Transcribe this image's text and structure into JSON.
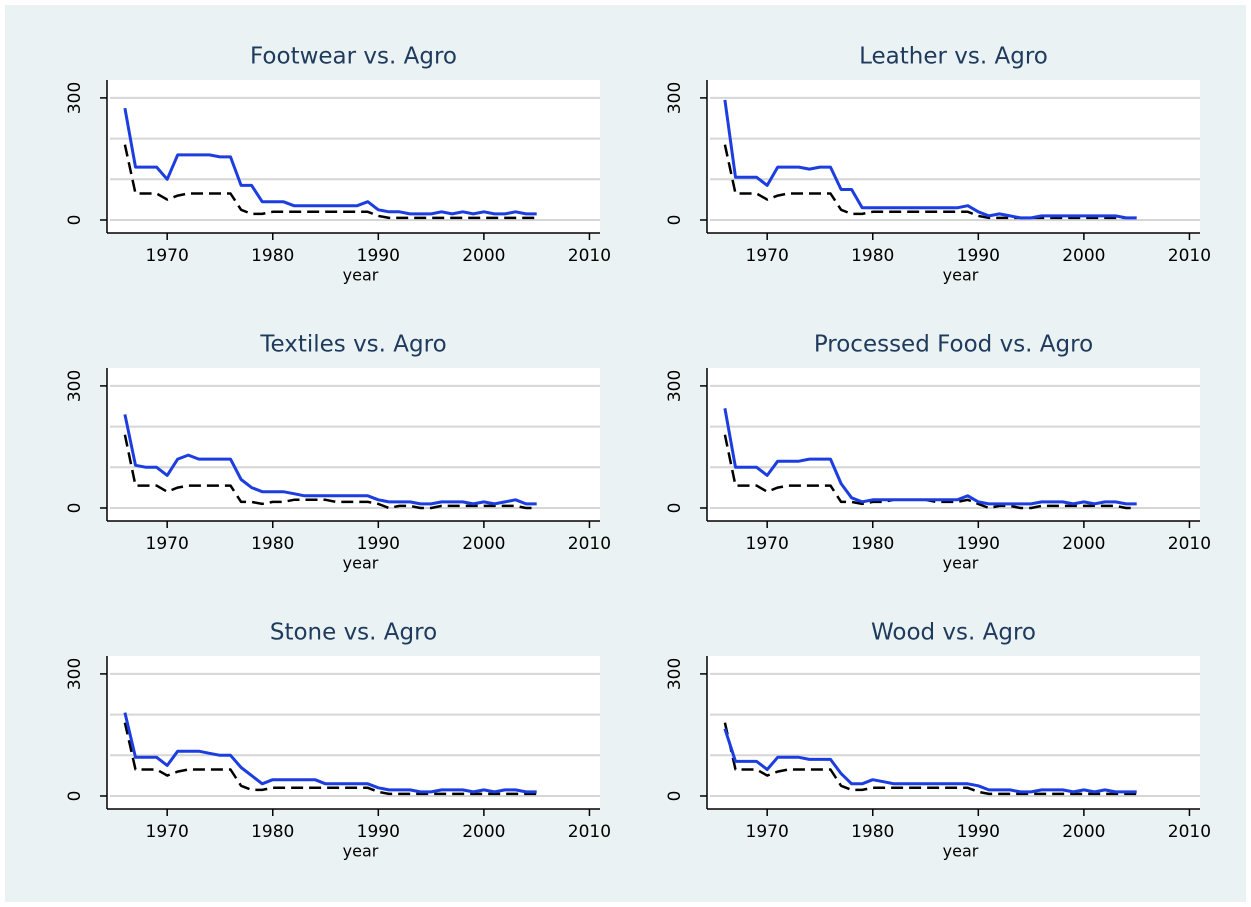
{
  "chart_data": [
    {
      "type": "line",
      "title": "Footwear vs. Agro",
      "xlabel": "year",
      "x": [
        1966,
        1967,
        1968,
        1969,
        1970,
        1971,
        1972,
        1973,
        1974,
        1975,
        1976,
        1977,
        1978,
        1979,
        1980,
        1981,
        1982,
        1983,
        1984,
        1985,
        1986,
        1987,
        1988,
        1989,
        1990,
        1991,
        1992,
        1993,
        1994,
        1995,
        1996,
        1997,
        1998,
        1999,
        2000,
        2001,
        2002,
        2003,
        2004,
        2005
      ],
      "xlim": [
        1964.3,
        2011
      ],
      "xticks": [
        1970,
        1980,
        1990,
        2000,
        2010
      ],
      "ylim": [
        -32,
        344
      ],
      "yticks": [
        0,
        300
      ],
      "ygrid": [
        0,
        100,
        200,
        300
      ],
      "series": [
        {
          "color": "#1c3ee0",
          "dash": false,
          "values": [
            275,
            130,
            130,
            130,
            100,
            160,
            160,
            160,
            160,
            155,
            155,
            85,
            85,
            45,
            45,
            45,
            35,
            35,
            35,
            35,
            35,
            35,
            35,
            45,
            25,
            20,
            20,
            15,
            15,
            15,
            20,
            15,
            20,
            15,
            20,
            15,
            15,
            20,
            15,
            15
          ]
        },
        {
          "color": "#000000",
          "dash": true,
          "values": [
            185,
            65,
            65,
            65,
            50,
            60,
            65,
            65,
            65,
            65,
            65,
            25,
            15,
            15,
            20,
            20,
            20,
            20,
            20,
            20,
            20,
            20,
            20,
            20,
            10,
            5,
            5,
            5,
            5,
            5,
            5,
            5,
            5,
            5,
            5,
            5,
            5,
            5,
            5,
            5
          ]
        }
      ]
    },
    {
      "type": "line",
      "title": "Leather vs. Agro",
      "xlabel": "year",
      "x": [
        1966,
        1967,
        1968,
        1969,
        1970,
        1971,
        1972,
        1973,
        1974,
        1975,
        1976,
        1977,
        1978,
        1979,
        1980,
        1981,
        1982,
        1983,
        1984,
        1985,
        1986,
        1987,
        1988,
        1989,
        1990,
        1991,
        1992,
        1993,
        1994,
        1995,
        1996,
        1997,
        1998,
        1999,
        2000,
        2001,
        2002,
        2003,
        2004,
        2005
      ],
      "xlim": [
        1964.3,
        2011
      ],
      "xticks": [
        1970,
        1980,
        1990,
        2000,
        2010
      ],
      "ylim": [
        -32,
        344
      ],
      "yticks": [
        0,
        300
      ],
      "ygrid": [
        0,
        100,
        200,
        300
      ],
      "series": [
        {
          "color": "#1c3ee0",
          "dash": false,
          "values": [
            295,
            105,
            105,
            105,
            85,
            130,
            130,
            130,
            125,
            130,
            130,
            75,
            75,
            30,
            30,
            30,
            30,
            30,
            30,
            30,
            30,
            30,
            30,
            35,
            20,
            10,
            15,
            10,
            5,
            5,
            10,
            10,
            10,
            10,
            10,
            10,
            10,
            10,
            5,
            5
          ]
        },
        {
          "color": "#000000",
          "dash": true,
          "values": [
            185,
            65,
            65,
            65,
            50,
            60,
            65,
            65,
            65,
            65,
            65,
            25,
            15,
            15,
            20,
            20,
            20,
            20,
            20,
            20,
            20,
            20,
            20,
            20,
            10,
            5,
            5,
            5,
            5,
            5,
            5,
            5,
            5,
            5,
            5,
            5,
            5,
            5,
            5,
            5
          ]
        }
      ]
    },
    {
      "type": "line",
      "title": "Textiles vs. Agro",
      "xlabel": "year",
      "x": [
        1966,
        1967,
        1968,
        1969,
        1970,
        1971,
        1972,
        1973,
        1974,
        1975,
        1976,
        1977,
        1978,
        1979,
        1980,
        1981,
        1982,
        1983,
        1984,
        1985,
        1986,
        1987,
        1988,
        1989,
        1990,
        1991,
        1992,
        1993,
        1994,
        1995,
        1996,
        1997,
        1998,
        1999,
        2000,
        2001,
        2002,
        2003,
        2004,
        2005
      ],
      "xlim": [
        1964.3,
        2011
      ],
      "xticks": [
        1970,
        1980,
        1990,
        2000,
        2010
      ],
      "ylim": [
        -32,
        344
      ],
      "yticks": [
        0,
        300
      ],
      "ygrid": [
        0,
        100,
        200,
        300
      ],
      "series": [
        {
          "color": "#1c3ee0",
          "dash": false,
          "values": [
            230,
            105,
            100,
            100,
            80,
            120,
            130,
            120,
            120,
            120,
            120,
            70,
            50,
            40,
            40,
            40,
            35,
            30,
            30,
            30,
            30,
            30,
            30,
            30,
            20,
            15,
            15,
            15,
            10,
            10,
            15,
            15,
            15,
            10,
            15,
            10,
            15,
            20,
            10,
            10
          ]
        },
        {
          "color": "#000000",
          "dash": true,
          "values": [
            180,
            55,
            55,
            55,
            40,
            50,
            55,
            55,
            55,
            55,
            55,
            15,
            15,
            10,
            15,
            15,
            20,
            20,
            20,
            20,
            15,
            15,
            15,
            15,
            10,
            0,
            5,
            5,
            0,
            0,
            5,
            5,
            5,
            5,
            5,
            5,
            5,
            5,
            0,
            0
          ]
        }
      ]
    },
    {
      "type": "line",
      "title": "Processed Food vs. Agro",
      "xlabel": "year",
      "x": [
        1966,
        1967,
        1968,
        1969,
        1970,
        1971,
        1972,
        1973,
        1974,
        1975,
        1976,
        1977,
        1978,
        1979,
        1980,
        1981,
        1982,
        1983,
        1984,
        1985,
        1986,
        1987,
        1988,
        1989,
        1990,
        1991,
        1992,
        1993,
        1994,
        1995,
        1996,
        1997,
        1998,
        1999,
        2000,
        2001,
        2002,
        2003,
        2004,
        2005
      ],
      "xlim": [
        1964.3,
        2011
      ],
      "xticks": [
        1970,
        1980,
        1990,
        2000,
        2010
      ],
      "ylim": [
        -32,
        344
      ],
      "yticks": [
        0,
        300
      ],
      "ygrid": [
        0,
        100,
        200,
        300
      ],
      "series": [
        {
          "color": "#1c3ee0",
          "dash": false,
          "values": [
            245,
            100,
            100,
            100,
            80,
            115,
            115,
            115,
            120,
            120,
            120,
            60,
            25,
            15,
            20,
            20,
            20,
            20,
            20,
            20,
            20,
            20,
            20,
            30,
            15,
            10,
            10,
            10,
            10,
            10,
            15,
            15,
            15,
            10,
            15,
            10,
            15,
            15,
            10,
            10
          ]
        },
        {
          "color": "#000000",
          "dash": true,
          "values": [
            180,
            55,
            55,
            55,
            40,
            50,
            55,
            55,
            55,
            55,
            55,
            15,
            15,
            10,
            15,
            15,
            20,
            20,
            20,
            20,
            15,
            15,
            15,
            20,
            10,
            0,
            5,
            5,
            0,
            0,
            5,
            5,
            5,
            5,
            5,
            5,
            5,
            5,
            0,
            0
          ]
        }
      ]
    },
    {
      "type": "line",
      "title": "Stone vs. Agro",
      "xlabel": "year",
      "x": [
        1966,
        1967,
        1968,
        1969,
        1970,
        1971,
        1972,
        1973,
        1974,
        1975,
        1976,
        1977,
        1978,
        1979,
        1980,
        1981,
        1982,
        1983,
        1984,
        1985,
        1986,
        1987,
        1988,
        1989,
        1990,
        1991,
        1992,
        1993,
        1994,
        1995,
        1996,
        1997,
        1998,
        1999,
        2000,
        2001,
        2002,
        2003,
        2004,
        2005
      ],
      "xlim": [
        1964.3,
        2011
      ],
      "xticks": [
        1970,
        1980,
        1990,
        2000,
        2010
      ],
      "ylim": [
        -32,
        344
      ],
      "yticks": [
        0,
        300
      ],
      "ygrid": [
        0,
        100,
        200,
        300
      ],
      "series": [
        {
          "color": "#1c3ee0",
          "dash": false,
          "values": [
            205,
            95,
            95,
            95,
            75,
            110,
            110,
            110,
            105,
            100,
            100,
            70,
            50,
            30,
            40,
            40,
            40,
            40,
            40,
            30,
            30,
            30,
            30,
            30,
            20,
            15,
            15,
            15,
            10,
            10,
            15,
            15,
            15,
            10,
            15,
            10,
            15,
            15,
            10,
            10
          ]
        },
        {
          "color": "#000000",
          "dash": true,
          "values": [
            180,
            65,
            65,
            65,
            50,
            60,
            65,
            65,
            65,
            65,
            65,
            25,
            15,
            15,
            20,
            20,
            20,
            20,
            20,
            20,
            20,
            20,
            20,
            20,
            10,
            5,
            5,
            5,
            5,
            5,
            5,
            5,
            5,
            5,
            5,
            5,
            5,
            5,
            5,
            5
          ]
        }
      ]
    },
    {
      "type": "line",
      "title": "Wood vs. Agro",
      "xlabel": "year",
      "x": [
        1966,
        1967,
        1968,
        1969,
        1970,
        1971,
        1972,
        1973,
        1974,
        1975,
        1976,
        1977,
        1978,
        1979,
        1980,
        1981,
        1982,
        1983,
        1984,
        1985,
        1986,
        1987,
        1988,
        1989,
        1990,
        1991,
        1992,
        1993,
        1994,
        1995,
        1996,
        1997,
        1998,
        1999,
        2000,
        2001,
        2002,
        2003,
        2004,
        2005
      ],
      "xlim": [
        1964.3,
        2011
      ],
      "xticks": [
        1970,
        1980,
        1990,
        2000,
        2010
      ],
      "ylim": [
        -32,
        344
      ],
      "yticks": [
        0,
        300
      ],
      "ygrid": [
        0,
        100,
        200,
        300
      ],
      "series": [
        {
          "color": "#1c3ee0",
          "dash": false,
          "values": [
            165,
            85,
            85,
            85,
            65,
            95,
            95,
            95,
            90,
            90,
            90,
            55,
            30,
            30,
            40,
            35,
            30,
            30,
            30,
            30,
            30,
            30,
            30,
            30,
            25,
            15,
            15,
            15,
            10,
            10,
            15,
            15,
            15,
            10,
            15,
            10,
            15,
            10,
            10,
            10
          ]
        },
        {
          "color": "#000000",
          "dash": true,
          "values": [
            180,
            65,
            65,
            65,
            50,
            60,
            65,
            65,
            65,
            65,
            65,
            25,
            15,
            15,
            20,
            20,
            20,
            20,
            20,
            20,
            20,
            20,
            20,
            20,
            10,
            5,
            5,
            5,
            5,
            5,
            5,
            5,
            5,
            5,
            5,
            5,
            5,
            5,
            5,
            5
          ]
        }
      ]
    }
  ]
}
